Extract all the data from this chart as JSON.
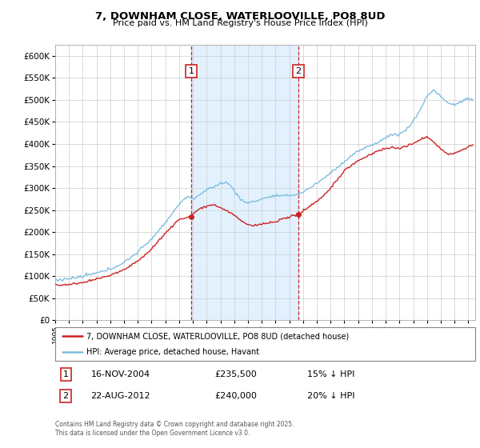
{
  "title": "7, DOWNHAM CLOSE, WATERLOOVILLE, PO8 8UD",
  "subtitle": "Price paid vs. HM Land Registry's House Price Index (HPI)",
  "legend_line1": "7, DOWNHAM CLOSE, WATERLOOVILLE, PO8 8UD (detached house)",
  "legend_line2": "HPI: Average price, detached house, Havant",
  "annotation1_date": "16-NOV-2004",
  "annotation1_price": 235500,
  "annotation1_hpi": "15% ↓ HPI",
  "annotation2_date": "22-AUG-2012",
  "annotation2_price": 240000,
  "annotation2_hpi": "20% ↓ HPI",
  "footer": "Contains HM Land Registry data © Crown copyright and database right 2025.\nThis data is licensed under the Open Government Licence v3.0.",
  "hpi_color": "#7fbfdf",
  "price_color": "#cc2222",
  "annotation_color": "#cc2222",
  "shaded_color": "#ddeeff",
  "ylim": [
    0,
    625000
  ],
  "ytick_vals": [
    0,
    50000,
    100000,
    150000,
    200000,
    250000,
    300000,
    350000,
    400000,
    450000,
    500000,
    550000,
    600000
  ],
  "sale1_x": 2004.88,
  "sale2_x": 2012.64,
  "xmin": 1995.0,
  "xmax": 2025.5
}
